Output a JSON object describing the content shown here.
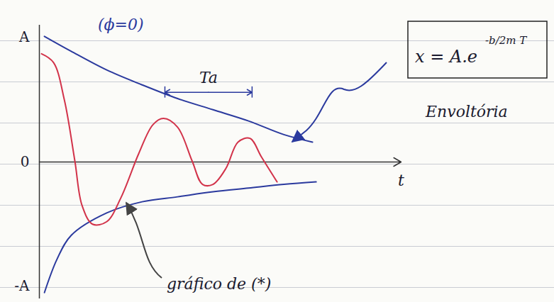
{
  "chart_data": {
    "type": "line",
    "title": "(ϕ=0)",
    "x_label": "t",
    "xlim": [
      0,
      10
    ],
    "ylim": [
      -1.1,
      1.1
    ],
    "yticks": [
      {
        "value": 1,
        "label": "A"
      },
      {
        "value": 0,
        "label": "0"
      },
      {
        "value": -1,
        "label": "-A"
      }
    ],
    "tick_labels": "y",
    "grid": false,
    "series": [
      {
        "name": "Envoltória",
        "color": "#2b3a9e",
        "x": [
          0.14,
          0.88,
          1.86,
          2.84,
          3.82,
          4.8,
          5.78,
          6.76,
          7.55
        ],
        "values": [
          1.01,
          0.89,
          0.74,
          0.62,
          0.51,
          0.42,
          0.33,
          0.22,
          0.16
        ]
      },
      {
        "name": "Envoltória",
        "color": "#2b3a9e",
        "x": [
          0.14,
          0.49,
          0.88,
          1.86,
          2.84,
          3.82,
          4.8,
          5.78,
          6.76,
          7.65
        ],
        "values": [
          -1.05,
          -0.78,
          -0.59,
          -0.41,
          -0.32,
          -0.28,
          -0.24,
          -0.21,
          -0.18,
          -0.16
        ]
      },
      {
        "name": "gráfico de (*)",
        "color": "#d2334a",
        "x": [
          0.06,
          0.39,
          0.69,
          0.98,
          1.18,
          1.47,
          1.86,
          2.25,
          2.75,
          3.14,
          3.43,
          3.82,
          4.22,
          4.51,
          4.8,
          5.16,
          5.49,
          5.82,
          6.14,
          6.57
        ],
        "values": [
          0.87,
          0.8,
          0.5,
          0.01,
          -0.35,
          -0.5,
          -0.48,
          -0.29,
          0.07,
          0.3,
          0.35,
          0.28,
          0.01,
          -0.18,
          -0.18,
          -0.05,
          0.16,
          0.19,
          0.04,
          -0.16
        ]
      }
    ],
    "period": {
      "label": "Ta",
      "start": 3.47,
      "end": 5.88,
      "y": 0.56
    },
    "formula": {
      "text": "x = A.e",
      "exponent": "-b/2m T"
    },
    "legend": false
  }
}
